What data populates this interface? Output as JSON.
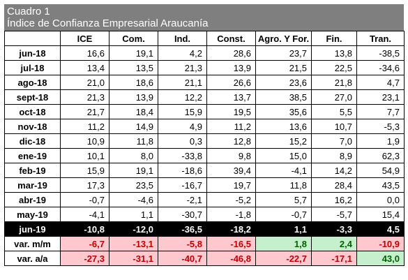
{
  "title": "Cuadro 1",
  "subtitle": "Índice de Confianza Empresarial Araucanía",
  "columns": [
    "",
    "ICE",
    "Com.",
    "Ind.",
    "Const.",
    "Agro. Y For.",
    "Fin.",
    "Tran."
  ],
  "rows": [
    {
      "label": "jun-18",
      "values": [
        "16,6",
        "19,1",
        "4,2",
        "28,6",
        "23,7",
        "13,8",
        "-38,5"
      ]
    },
    {
      "label": "jul-18",
      "values": [
        "13,4",
        "13,5",
        "21,3",
        "13,9",
        "21,5",
        "22,5",
        "-34,6"
      ]
    },
    {
      "label": "ago-18",
      "values": [
        "21,0",
        "18,6",
        "21,1",
        "26,6",
        "23,6",
        "21,8",
        "4,7"
      ]
    },
    {
      "label": "sept-18",
      "values": [
        "21,3",
        "13,9",
        "12,2",
        "13,7",
        "38,5",
        "27,0",
        "23,1"
      ]
    },
    {
      "label": "oct-18",
      "values": [
        "21,7",
        "18,4",
        "15,9",
        "19,5",
        "35,6",
        "5,5",
        "7,7"
      ]
    },
    {
      "label": "nov-18",
      "values": [
        "11,2",
        "14,9",
        "4,9",
        "11,2",
        "13,6",
        "10,7",
        "-5,3"
      ]
    },
    {
      "label": "dic-18",
      "values": [
        "10,9",
        "11,8",
        "0,3",
        "12,8",
        "15,2",
        "7,0",
        "1,9"
      ]
    },
    {
      "label": "ene-19",
      "values": [
        "10,1",
        "8,0",
        "-33,8",
        "9,8",
        "15,0",
        "8,9",
        "62,3"
      ]
    },
    {
      "label": "feb-19",
      "values": [
        "15,9",
        "19,1",
        "-18,6",
        "39,4",
        "-4,1",
        "14,2",
        "54,9"
      ]
    },
    {
      "label": "mar-19",
      "values": [
        "17,3",
        "23,5",
        "-16,7",
        "19,7",
        "11,8",
        "28,4",
        "43,5"
      ]
    },
    {
      "label": "abr-19",
      "values": [
        "-0,7",
        "-4,6",
        "-2,1",
        "-5,2",
        "5,7",
        "16,2",
        "0,0"
      ]
    },
    {
      "label": "may-19",
      "values": [
        "-4,1",
        "1,1",
        "-30,7",
        "-1,8",
        "-0,7",
        "-5,7",
        "15,4"
      ]
    }
  ],
  "highlight_row": {
    "label": "jun-19",
    "values": [
      "-10,8",
      "-12,0",
      "-36,5",
      "-18,2",
      "1,1",
      "-3,3",
      "4,5"
    ]
  },
  "var_rows": [
    {
      "label": "var. m/m",
      "values": [
        "-6,7",
        "-13,1",
        "-5,8",
        "-16,5",
        "1,8",
        "2,4",
        "-10,9"
      ],
      "status": [
        "neg",
        "neg",
        "neg",
        "neg",
        "pos",
        "pos",
        "neg"
      ]
    },
    {
      "label": "var. a/a",
      "values": [
        "-27,3",
        "-31,1",
        "-40,7",
        "-46,8",
        "-22,7",
        "-17,1",
        "43,0"
      ],
      "status": [
        "neg",
        "neg",
        "neg",
        "neg",
        "neg",
        "neg",
        "pos"
      ]
    }
  ],
  "colors": {
    "header_bg": "#7f7f7f",
    "neg_bg": "#ffc7ce",
    "neg_text": "#c00000",
    "pos_bg": "#c6efce",
    "pos_text": "#006100",
    "highlight_bg": "#000000"
  }
}
